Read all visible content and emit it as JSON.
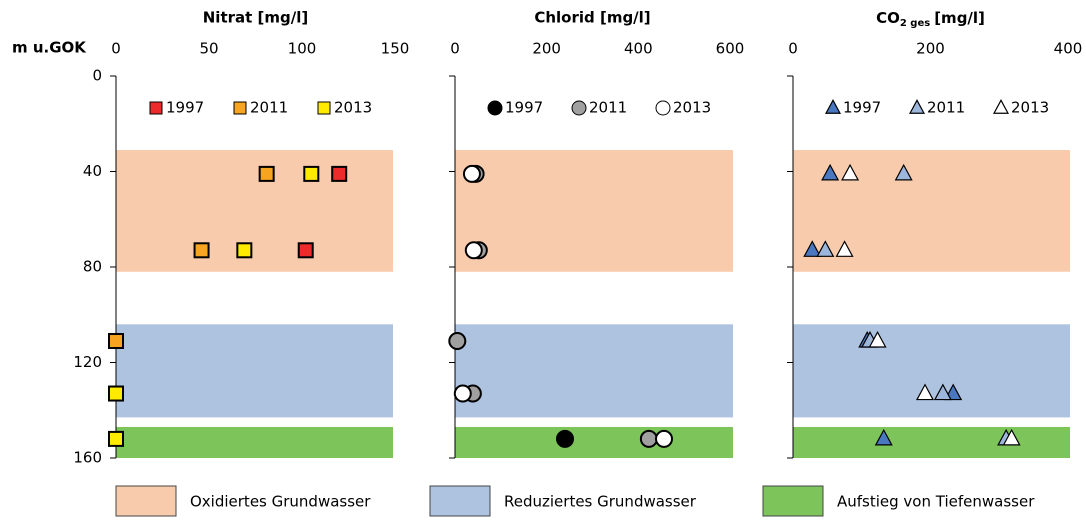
{
  "y_label": "m u.GOK",
  "zones": [
    {
      "name": "Oxidiertes Grundwasser",
      "color": "#f8cbad",
      "range": [
        31,
        82
      ]
    },
    {
      "name": "Reduziertes Grundwasser",
      "color": "#adc3e0",
      "range": [
        104,
        143
      ]
    },
    {
      "name": "Aufstieg von Tiefenwasser",
      "color": "#7dc55b",
      "range": [
        147,
        160
      ]
    }
  ],
  "chart_data": [
    {
      "type": "scatter",
      "marker": "square",
      "title": "Nitrat [mg/l]",
      "xlim": [
        0,
        150
      ],
      "xticks": [
        0,
        50,
        100,
        150
      ],
      "ylim": [
        0,
        160
      ],
      "yticks": [
        0,
        40,
        80,
        120,
        160
      ],
      "series": [
        {
          "name": "1997",
          "color": "#ee2b2b",
          "x": [
            120,
            102
          ],
          "y": [
            41,
            73
          ]
        },
        {
          "name": "2011",
          "color": "#f7a520",
          "x": [
            81,
            46,
            0
          ],
          "y": [
            41,
            73,
            111
          ]
        },
        {
          "name": "2013",
          "color": "#ffeb00",
          "x": [
            105,
            69,
            0,
            0
          ],
          "y": [
            41,
            73,
            133,
            152
          ]
        }
      ]
    },
    {
      "type": "scatter",
      "marker": "circle",
      "title": "Chlorid [mg/l]",
      "xlim": [
        0,
        600
      ],
      "xticks": [
        0,
        200,
        400,
        600
      ],
      "ylim": [
        0,
        160
      ],
      "yticks": [
        0,
        40,
        80,
        120,
        160
      ],
      "series": [
        {
          "name": "1997",
          "color": "#000000",
          "x": [
            240
          ],
          "y": [
            152
          ]
        },
        {
          "name": "2011",
          "color": "#a0a0a0",
          "x": [
            45,
            52,
            5,
            39,
            423
          ],
          "y": [
            41,
            73,
            111,
            133,
            152
          ]
        },
        {
          "name": "2013",
          "color": "#ffffff",
          "x": [
            37,
            41,
            17,
            456
          ],
          "y": [
            41,
            73,
            133,
            152
          ]
        }
      ]
    },
    {
      "type": "scatter",
      "marker": "triangle",
      "title": {
        "main": "CO",
        "sub": "2 ges",
        "unit": "[mg/l]"
      },
      "xlim": [
        0,
        400
      ],
      "xticks": [
        0,
        200,
        400
      ],
      "ylim": [
        0,
        160
      ],
      "yticks": [
        0,
        40,
        80,
        120,
        160
      ],
      "series": [
        {
          "name": "1997",
          "color": "#4a78c0",
          "x": [
            54,
            28,
            108,
            233,
            132
          ],
          "y": [
            41,
            73,
            111,
            133,
            152
          ]
        },
        {
          "name": "2011",
          "color": "#9db6dc",
          "x": [
            161,
            47,
            112,
            218,
            310
          ],
          "y": [
            41,
            73,
            111,
            133,
            152
          ]
        },
        {
          "name": "2013",
          "color": "#ffffff",
          "x": [
            83,
            75,
            123,
            192,
            318
          ],
          "y": [
            41,
            73,
            111,
            133,
            152
          ]
        }
      ]
    }
  ]
}
